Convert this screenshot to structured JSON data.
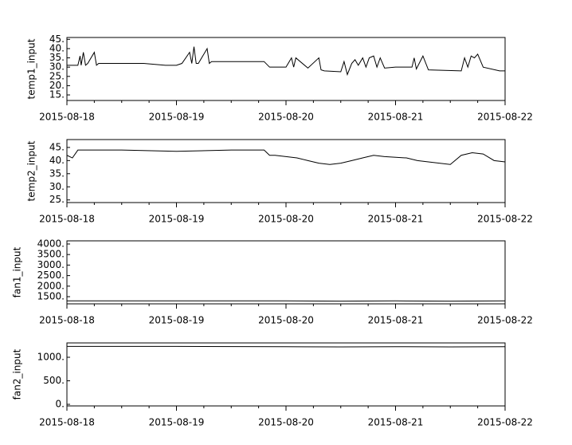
{
  "chart_data": [
    {
      "type": "line",
      "ylabel": "temp1_input",
      "color": "#000000",
      "x": [
        0,
        0.1,
        0.12,
        0.13,
        0.15,
        0.17,
        0.19,
        0.25,
        0.27,
        0.29,
        0.31,
        0.5,
        0.7,
        0.9,
        1.0,
        1.05,
        1.12,
        1.14,
        1.16,
        1.18,
        1.2,
        1.28,
        1.3,
        1.32,
        1.4,
        1.8,
        1.85,
        2.0,
        2.05,
        2.07,
        2.09,
        2.2,
        2.3,
        2.32,
        2.35,
        2.5,
        2.53,
        2.56,
        2.6,
        2.63,
        2.66,
        2.7,
        2.73,
        2.76,
        2.8,
        2.83,
        2.86,
        2.9,
        3.0,
        3.15,
        3.17,
        3.19,
        3.25,
        3.3,
        3.6,
        3.63,
        3.66,
        3.69,
        3.72,
        3.75,
        3.8,
        3.95,
        4.0
      ],
      "values": [
        31,
        31,
        36,
        31,
        38,
        31,
        32,
        38,
        31,
        32,
        32,
        32,
        32,
        31,
        31,
        32,
        38,
        32,
        41,
        32,
        32,
        40,
        32,
        33,
        33,
        33,
        30,
        30,
        35,
        30,
        35,
        29.5,
        35,
        28.5,
        28,
        27.5,
        33,
        26,
        32,
        34,
        31,
        35,
        30,
        35,
        36,
        30,
        35,
        29.5,
        30,
        30,
        35,
        29,
        36,
        28.5,
        28,
        35,
        30,
        36,
        35,
        37,
        30,
        28,
        28
      ],
      "xlim": [
        0,
        4
      ],
      "xticks": [
        {
          "value": 0,
          "label": "2015-08-18"
        },
        {
          "value": 1,
          "label": "2015-08-19"
        },
        {
          "value": 2,
          "label": "2015-08-20"
        },
        {
          "value": 3,
          "label": "2015-08-21"
        },
        {
          "value": 4,
          "label": "2015-08-22"
        }
      ],
      "ylim": [
        12,
        46
      ],
      "yticks": [
        {
          "value": 15,
          "label": "15."
        },
        {
          "value": 20,
          "label": "20."
        },
        {
          "value": 25,
          "label": "25."
        },
        {
          "value": 30,
          "label": "30."
        },
        {
          "value": 35,
          "label": "35."
        },
        {
          "value": 40,
          "label": "40."
        },
        {
          "value": 45,
          "label": "45."
        }
      ]
    },
    {
      "type": "line",
      "ylabel": "temp2_input",
      "color": "#000000",
      "x": [
        0,
        0.05,
        0.1,
        0.5,
        1.0,
        1.5,
        1.8,
        1.85,
        1.9,
        2.1,
        2.2,
        2.3,
        2.4,
        2.5,
        2.6,
        2.7,
        2.8,
        2.9,
        3.1,
        3.2,
        3.3,
        3.5,
        3.6,
        3.7,
        3.8,
        3.9,
        4.0
      ],
      "values": [
        42,
        41,
        44,
        44,
        43.5,
        44,
        44,
        42,
        42,
        41,
        40,
        39,
        38.5,
        39,
        40,
        41,
        42,
        41.5,
        41,
        40,
        39.5,
        38.5,
        42,
        43,
        42.5,
        40,
        39.5
      ],
      "xlim": [
        0,
        4
      ],
      "xticks": [
        {
          "value": 0,
          "label": "2015-08-18"
        },
        {
          "value": 1,
          "label": "2015-08-19"
        },
        {
          "value": 2,
          "label": "2015-08-20"
        },
        {
          "value": 3,
          "label": "2015-08-21"
        },
        {
          "value": 4,
          "label": "2015-08-22"
        }
      ],
      "ylim": [
        24,
        48
      ],
      "yticks": [
        {
          "value": 25,
          "label": "25."
        },
        {
          "value": 30,
          "label": "30."
        },
        {
          "value": 35,
          "label": "35."
        },
        {
          "value": 40,
          "label": "40."
        },
        {
          "value": 45,
          "label": "45."
        }
      ]
    },
    {
      "type": "line",
      "ylabel": "fan1_input",
      "color": "#000000",
      "x": [
        0,
        1,
        2,
        2.5,
        3,
        3.5,
        4
      ],
      "values": [
        1300,
        1300,
        1300,
        1290,
        1300,
        1290,
        1300
      ],
      "xlim": [
        0,
        4
      ],
      "xticks": [
        {
          "value": 0,
          "label": "2015-08-18"
        },
        {
          "value": 1,
          "label": "2015-08-19"
        },
        {
          "value": 2,
          "label": "2015-08-20"
        },
        {
          "value": 3,
          "label": "2015-08-21"
        },
        {
          "value": 4,
          "label": "2015-08-22"
        }
      ],
      "ylim": [
        1160,
        4150
      ],
      "yticks": [
        {
          "value": 1500,
          "label": "1500."
        },
        {
          "value": 2000,
          "label": "2000."
        },
        {
          "value": 2500,
          "label": "2500."
        },
        {
          "value": 3000,
          "label": "3000."
        },
        {
          "value": 3500,
          "label": "3500."
        },
        {
          "value": 4000,
          "label": "4000."
        }
      ]
    },
    {
      "type": "line",
      "ylabel": "fan2_input",
      "color": "#000000",
      "x": [
        0,
        1,
        2,
        2.5,
        3,
        3.5,
        4
      ],
      "values": [
        1230,
        1230,
        1225,
        1220,
        1225,
        1220,
        1225
      ],
      "xlim": [
        0,
        4
      ],
      "xticks": [
        {
          "value": 0,
          "label": "2015-08-18"
        },
        {
          "value": 1,
          "label": "2015-08-19"
        },
        {
          "value": 2,
          "label": "2015-08-20"
        },
        {
          "value": 3,
          "label": "2015-08-21"
        },
        {
          "value": 4,
          "label": "2015-08-22"
        }
      ],
      "ylim": [
        -34,
        1305
      ],
      "yticks": [
        {
          "value": 0,
          "label": "0."
        },
        {
          "value": 500,
          "label": "500."
        },
        {
          "value": 1000,
          "label": "1000."
        }
      ]
    }
  ]
}
